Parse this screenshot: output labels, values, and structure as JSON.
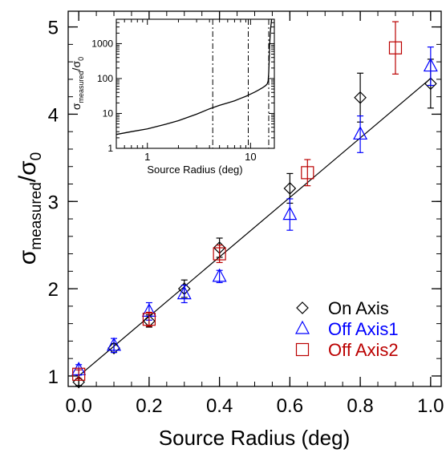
{
  "chart_data": [
    {
      "type": "scatter",
      "xlabel": "Source Radius (deg)",
      "ylabel_base": "σ",
      "ylabel_sub1": "measured",
      "ylabel_sep": "/σ",
      "ylabel_sub2": "0",
      "xlim": [
        -0.03,
        1.03
      ],
      "ylim": [
        0.88,
        5.18
      ],
      "xticks": [
        0.0,
        0.2,
        0.4,
        0.6,
        0.8,
        1.0
      ],
      "xtick_labels": [
        "0.0",
        "0.2",
        "0.4",
        "0.6",
        "0.8",
        "1.0"
      ],
      "yticks": [
        1,
        2,
        3,
        4,
        5
      ],
      "ytick_labels": [
        "1",
        "2",
        "3",
        "4",
        "5"
      ],
      "fit_line": [
        [
          0.0,
          1.0
        ],
        [
          1.0,
          4.41
        ]
      ],
      "legend_position": "bottom-right",
      "series": [
        {
          "name": "On Axis",
          "marker": "diamond",
          "color": "#000000",
          "x": [
            0.0,
            0.1,
            0.2,
            0.3,
            0.4,
            0.6,
            0.8,
            1.0
          ],
          "y": [
            0.93,
            1.32,
            1.63,
            2.0,
            2.47,
            3.15,
            4.19,
            4.35
          ],
          "err": [
            0.04,
            0.05,
            0.07,
            0.1,
            0.11,
            0.17,
            0.28,
            0.28
          ]
        },
        {
          "name": "Off Axis1",
          "marker": "triangle",
          "color": "#0000ff",
          "x": [
            0.0,
            0.1,
            0.2,
            0.3,
            0.4,
            0.6,
            0.8,
            1.0
          ],
          "y": [
            1.07,
            1.35,
            1.74,
            1.94,
            2.14,
            2.85,
            3.77,
            4.55
          ],
          "err": [
            0.06,
            0.08,
            0.1,
            0.1,
            0.07,
            0.18,
            0.21,
            0.22
          ]
        },
        {
          "name": "Off Axis2",
          "marker": "square",
          "color": "#bb0000",
          "x": [
            0.0,
            0.2,
            0.4,
            0.65,
            0.9
          ],
          "y": [
            1.02,
            1.65,
            2.4,
            3.33,
            4.76
          ],
          "err": [
            0.05,
            0.08,
            0.1,
            0.15,
            0.3
          ]
        }
      ]
    },
    {
      "type": "line",
      "xlabel": "Source Radius (deg)",
      "ylabel_base": "σ",
      "ylabel_sub1": "measured",
      "ylabel_sep": "/σ",
      "ylabel_sub2": "0",
      "xscale": "log",
      "yscale": "log",
      "xlim": [
        0.5,
        17
      ],
      "ylim": [
        1,
        5000
      ],
      "xticks": [
        1,
        10
      ],
      "xtick_labels": [
        "1",
        "10"
      ],
      "yticks": [
        1,
        10,
        100,
        1000
      ],
      "ytick_labels": [
        "1",
        "10",
        "100",
        "1000"
      ],
      "vlines": [
        4.3,
        9.5,
        15.0
      ],
      "curve": {
        "x": [
          0.5,
          0.7,
          1,
          1.5,
          2,
          3,
          4,
          5,
          6,
          7,
          8,
          9,
          10,
          11,
          12,
          13,
          14,
          14.5,
          14.8,
          15,
          15.15,
          15.3,
          15.6,
          16
        ],
        "y": [
          2.5,
          3.0,
          3.6,
          4.9,
          6.2,
          9.5,
          13.6,
          17,
          20,
          23,
          27,
          31,
          36,
          41,
          47,
          54,
          63,
          70,
          85,
          150,
          350,
          900,
          2500,
          5000
        ]
      }
    }
  ]
}
